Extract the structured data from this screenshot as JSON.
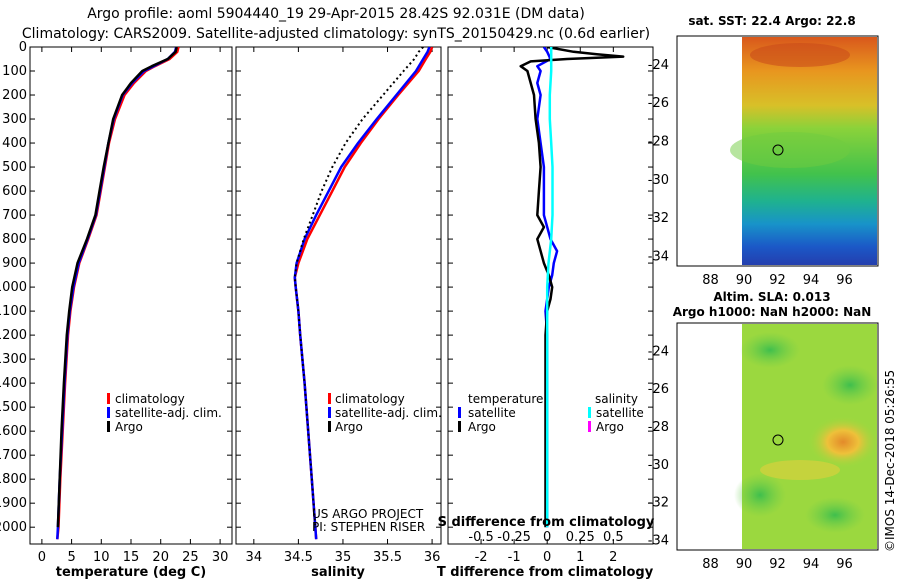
{
  "title": {
    "line1": "Argo profile: aoml 5904440_19 29-Apr-2015 28.42S 92.031E (DM data)",
    "line2": "Climatology: CARS2009. Satellite-adjusted climatology: synTS_20150429.nc (0.6d earlier)"
  },
  "colors": {
    "climatology": "#ff0000",
    "satellite": "#0000ff",
    "argo": "#000000",
    "sal_satellite": "#00ffff",
    "sal_argo": "#ff00ff"
  },
  "chart_data": [
    {
      "type": "line",
      "name": "temperature-profile",
      "xlabel": "temperature (deg C)",
      "xlim": [
        -2,
        32
      ],
      "ylim": [
        2070,
        0
      ],
      "xticks": [
        0,
        5,
        10,
        15,
        20,
        25,
        30
      ],
      "yticks": [
        0,
        100,
        200,
        300,
        400,
        500,
        600,
        700,
        800,
        900,
        1000,
        1100,
        1200,
        1300,
        1400,
        1500,
        1600,
        1700,
        1800,
        1900,
        2000
      ],
      "legend": [
        "climatology",
        "satellite-adj. clim.",
        "Argo"
      ],
      "series": [
        {
          "name": "climatology",
          "depth": [
            0,
            20,
            50,
            80,
            100,
            150,
            200,
            300,
            400,
            500,
            600,
            700,
            800,
            900,
            1000,
            1100,
            1200,
            1400,
            1600,
            1800,
            2000,
            2050
          ],
          "values": [
            23.0,
            22.8,
            21.5,
            19.0,
            17.5,
            15.5,
            13.9,
            12.3,
            11.3,
            10.6,
            9.9,
            9.2,
            7.8,
            6.3,
            5.4,
            4.8,
            4.4,
            3.9,
            3.5,
            3.1,
            2.8,
            2.6
          ]
        },
        {
          "name": "satellite-adj. clim.",
          "depth": [
            0,
            20,
            50,
            80,
            100,
            150,
            200,
            300,
            400,
            500,
            600,
            700,
            800,
            900,
            1000,
            1100,
            1200,
            1400,
            1600,
            1800,
            2000,
            2050
          ],
          "values": [
            22.6,
            22.4,
            21.2,
            18.8,
            17.2,
            15.2,
            13.6,
            12.1,
            11.2,
            10.5,
            9.8,
            9.1,
            7.7,
            6.2,
            5.3,
            4.7,
            4.3,
            3.8,
            3.4,
            3.0,
            2.7,
            2.6
          ]
        },
        {
          "name": "Argo",
          "depth": [
            0,
            20,
            50,
            80,
            100,
            150,
            200,
            300,
            400,
            500,
            600,
            700,
            800,
            900,
            1000,
            1100,
            1200,
            1400,
            1600,
            1800,
            2000
          ],
          "values": [
            22.7,
            22.5,
            21.2,
            18.5,
            16.9,
            15.0,
            13.5,
            12.0,
            11.2,
            10.4,
            9.7,
            9.0,
            7.6,
            6.0,
            5.1,
            4.6,
            4.2,
            3.7,
            3.3,
            3.0,
            2.7
          ]
        }
      ]
    },
    {
      "type": "line",
      "name": "salinity-profile",
      "xlabel": "salinity",
      "xlim": [
        33.8,
        36.1
      ],
      "ylim": [
        2070,
        0
      ],
      "xticks": [
        34,
        34.5,
        35,
        35.5,
        36
      ],
      "xtick_labels": [
        "34",
        "34.5",
        "35",
        "35.5",
        "36"
      ],
      "legend": [
        "climatology",
        "satellite-adj. clim.",
        "Argo"
      ],
      "annotation": [
        "US ARGO PROJECT",
        "PI: STEPHEN RISER"
      ],
      "series": [
        {
          "name": "climatology",
          "depth": [
            0,
            20,
            50,
            100,
            200,
            300,
            400,
            500,
            600,
            700,
            800,
            900,
            960,
            1000,
            1100,
            1200,
            1400,
            1600,
            1800,
            2000,
            2050
          ],
          "values": [
            36.0,
            35.98,
            35.93,
            35.85,
            35.62,
            35.4,
            35.2,
            35.02,
            34.88,
            34.74,
            34.6,
            34.5,
            34.46,
            34.47,
            34.5,
            34.52,
            34.57,
            34.61,
            34.65,
            34.69,
            34.7
          ]
        },
        {
          "name": "satellite-adj. clim.",
          "depth": [
            0,
            20,
            50,
            100,
            200,
            300,
            400,
            500,
            600,
            700,
            800,
            900,
            960,
            1000,
            1100,
            1200,
            1400,
            1600,
            1800,
            2000,
            2050
          ],
          "values": [
            35.97,
            35.95,
            35.9,
            35.82,
            35.6,
            35.38,
            35.17,
            34.98,
            34.84,
            34.7,
            34.57,
            34.48,
            34.46,
            34.47,
            34.5,
            34.52,
            34.57,
            34.61,
            34.65,
            34.69,
            34.7
          ]
        },
        {
          "name": "Argo",
          "depth": [
            0,
            20,
            50,
            100,
            200,
            300,
            400,
            500,
            600,
            700,
            800,
            900,
            960,
            1000,
            1100,
            1200,
            1400,
            1600,
            1800,
            2000
          ],
          "values": [
            35.9,
            35.85,
            35.8,
            35.68,
            35.45,
            35.22,
            35.03,
            34.88,
            34.76,
            34.66,
            34.56,
            34.48,
            34.46,
            34.47,
            34.5,
            34.52,
            34.57,
            34.61,
            34.65,
            34.69
          ]
        }
      ]
    },
    {
      "type": "line",
      "name": "difference-profile",
      "xlabel": "T difference from climatology",
      "xlabel_top": "S difference from climatology",
      "xlim": [
        -3,
        3.2
      ],
      "ylim": [
        2070,
        0
      ],
      "xticks": [
        -2,
        -1,
        0,
        1,
        2
      ],
      "xtick_labels": [
        "-2",
        "-1",
        "0",
        "1",
        "2"
      ],
      "top_ticks": [
        -0.5,
        -0.25,
        0,
        0.25,
        0.5
      ],
      "top_tick_labels": [
        "-0.5",
        "-0.25",
        "0",
        "0.25",
        "0.5"
      ],
      "legend_left_title": "temperature",
      "legend_right_title": "salinity",
      "legend_left": [
        "satellite",
        "Argo"
      ],
      "legend_right": [
        "satellite",
        "Argo"
      ],
      "series": [
        {
          "name": "T satellite",
          "depth": [
            0,
            20,
            50,
            80,
            100,
            150,
            200,
            300,
            400,
            500,
            600,
            700,
            800,
            850,
            900,
            950,
            1000,
            1050,
            1100,
            1200,
            1400,
            1600,
            1800,
            2000
          ],
          "values": [
            -0.1,
            0.0,
            0.1,
            -0.3,
            -0.2,
            -0.3,
            -0.2,
            -0.3,
            -0.2,
            -0.1,
            -0.1,
            -0.1,
            0.1,
            0.3,
            0.2,
            0.15,
            0.05,
            0.0,
            -0.05,
            0.0,
            0.0,
            0.0,
            0.0,
            0.0
          ]
        },
        {
          "name": "T Argo",
          "depth": [
            0,
            20,
            30,
            40,
            50,
            60,
            80,
            100,
            150,
            200,
            300,
            400,
            500,
            600,
            700,
            750,
            800,
            850,
            900,
            950,
            1000,
            1050,
            1100,
            1200,
            1400,
            1600,
            1800,
            2000
          ],
          "values": [
            0.0,
            0.8,
            1.5,
            2.3,
            0.6,
            -0.5,
            -0.8,
            -0.6,
            -0.5,
            -0.4,
            -0.35,
            -0.25,
            -0.2,
            -0.25,
            -0.3,
            -0.1,
            -0.3,
            -0.2,
            -0.1,
            0.05,
            0.15,
            0.1,
            0.0,
            -0.05,
            -0.05,
            -0.05,
            -0.05,
            -0.05
          ]
        },
        {
          "name": "S satellite",
          "depth": [
            0,
            20,
            50,
            100,
            200,
            300,
            400,
            500,
            600,
            700,
            800,
            900,
            1000,
            1100,
            1200,
            1400,
            1600,
            1800,
            2000
          ],
          "values": [
            0.03,
            0.03,
            0.03,
            0.03,
            0.02,
            0.02,
            0.03,
            0.04,
            0.04,
            0.04,
            0.03,
            0.01,
            0.0,
            0.0,
            0.0,
            0.0,
            0.0,
            0.0,
            0.0
          ]
        }
      ]
    },
    {
      "type": "heatmap",
      "name": "sst-map",
      "title": "sat. SST: 22.4 Argo: 22.8",
      "xticks": [
        88,
        90,
        92,
        94,
        96
      ],
      "yticks": [
        -24,
        -26,
        -28,
        -30,
        -32,
        -34
      ],
      "xlim": [
        86,
        98
      ],
      "ylim": [
        -34.5,
        -22.5
      ],
      "data_xlim": [
        90,
        98
      ],
      "marker": [
        92.031,
        -28.42
      ]
    },
    {
      "type": "heatmap",
      "name": "sla-map",
      "title": "Altim. SLA: 0.013",
      "subtitle": "Argo h1000: NaN h2000: NaN",
      "xticks": [
        88,
        90,
        92,
        94,
        96
      ],
      "yticks": [
        -24,
        -26,
        -28,
        -30,
        -32,
        -34
      ],
      "xlim": [
        86,
        98
      ],
      "ylim": [
        -34.5,
        -22.5
      ],
      "data_xlim": [
        90,
        98
      ],
      "marker": [
        92.031,
        -28.42
      ]
    }
  ],
  "imos_stamp": "©IMOS 14-Dec-2018 05:26:55"
}
